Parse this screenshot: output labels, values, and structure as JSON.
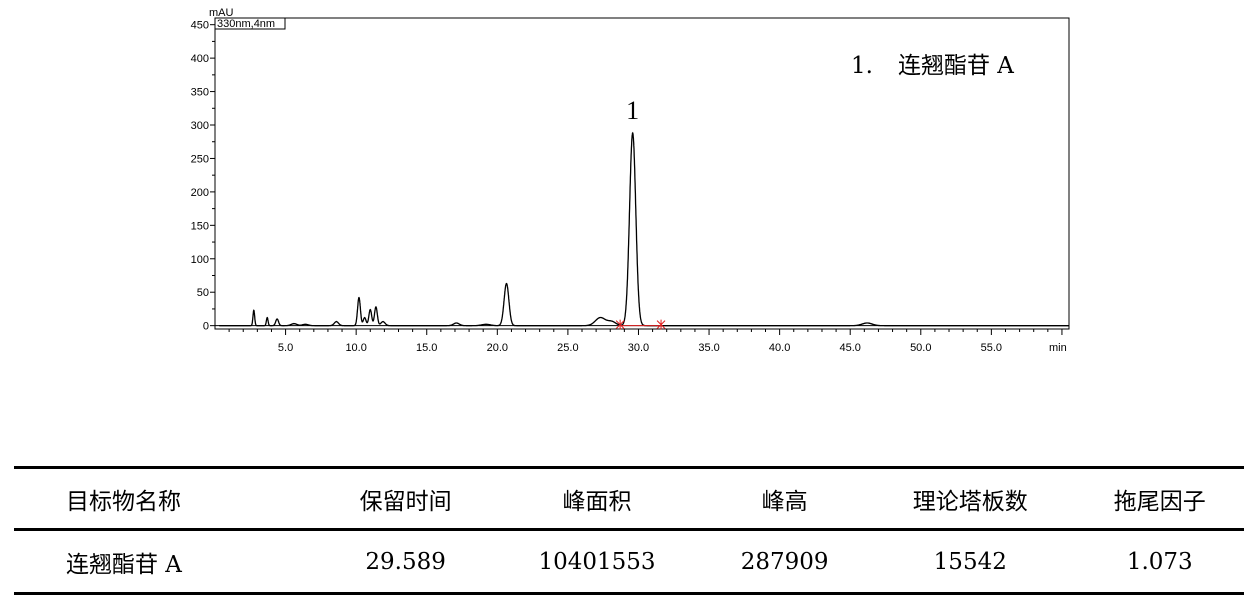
{
  "chart_data": {
    "type": "line",
    "channel_label": "330nm,4nm",
    "ylabel": "mAU",
    "xunit": "min",
    "xlim": [
      0,
      60.5
    ],
    "ylim": [
      -5,
      460
    ],
    "xticks": [
      5.0,
      10.0,
      15.0,
      20.0,
      25.0,
      30.0,
      35.0,
      40.0,
      45.0,
      50.0,
      55.0
    ],
    "xtick_labels": [
      "5.0",
      "10.0",
      "15.0",
      "20.0",
      "25.0",
      "30.0",
      "35.0",
      "40.0",
      "45.0",
      "50.0",
      "55.0"
    ],
    "yticks": [
      0,
      50,
      100,
      150,
      200,
      250,
      300,
      350,
      400,
      450
    ],
    "ytick_labels": [
      "0",
      "50",
      "100",
      "150",
      "200",
      "250",
      "300",
      "350",
      "400",
      "450"
    ],
    "baseline": 0,
    "peaks": [
      {
        "rt": 2.75,
        "height": 23,
        "width": 0.06
      },
      {
        "rt": 3.7,
        "height": 12,
        "width": 0.06
      },
      {
        "rt": 4.4,
        "height": 10,
        "width": 0.1
      },
      {
        "rt": 5.6,
        "height": 3,
        "width": 0.2
      },
      {
        "rt": 6.4,
        "height": 2,
        "width": 0.2
      },
      {
        "rt": 8.6,
        "height": 6,
        "width": 0.15
      },
      {
        "rt": 10.2,
        "height": 42,
        "width": 0.1
      },
      {
        "rt": 10.6,
        "height": 12,
        "width": 0.1
      },
      {
        "rt": 11.0,
        "height": 24,
        "width": 0.1
      },
      {
        "rt": 11.4,
        "height": 28,
        "width": 0.1
      },
      {
        "rt": 11.9,
        "height": 6,
        "width": 0.15
      },
      {
        "rt": 17.1,
        "height": 4,
        "width": 0.2
      },
      {
        "rt": 19.2,
        "height": 2,
        "width": 0.3
      },
      {
        "rt": 20.65,
        "height": 63,
        "width": 0.17
      },
      {
        "rt": 27.3,
        "height": 12,
        "width": 0.35
      },
      {
        "rt": 28.1,
        "height": 6,
        "width": 0.3
      },
      {
        "rt": 29.589,
        "height": 288,
        "width": 0.22
      },
      {
        "rt": 46.2,
        "height": 4,
        "width": 0.35
      }
    ],
    "integration_markers": [
      28.7,
      31.6
    ],
    "peak_annotation": {
      "label": "1",
      "x": 29.589
    },
    "legend": {
      "number": "1.",
      "name": "连翘酯苷 A"
    }
  },
  "table": {
    "headers": [
      "目标物名称",
      "保留时间",
      "峰面积",
      "峰高",
      "理论塔板数",
      "拖尾因子"
    ],
    "rows": [
      [
        "连翘酯苷 A",
        "29.589",
        "10401553",
        "287909",
        "15542",
        "1.073"
      ]
    ]
  }
}
